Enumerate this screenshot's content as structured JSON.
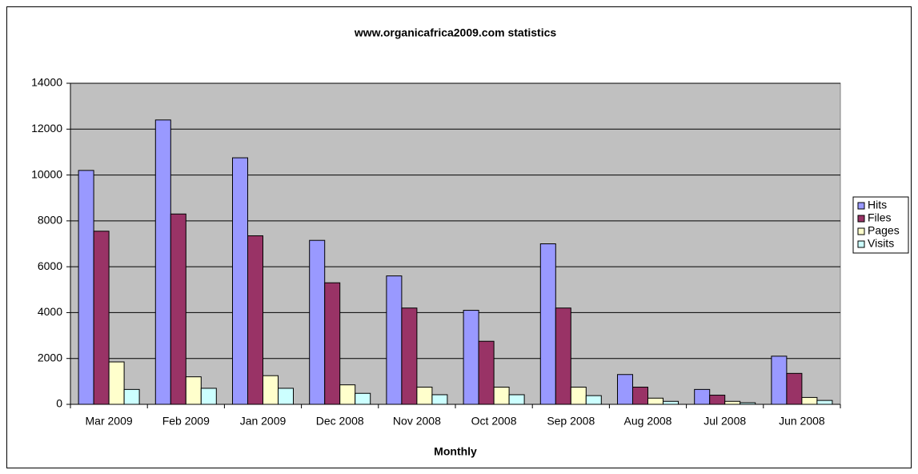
{
  "chart_data": {
    "type": "bar",
    "title": "www.organicafrica2009.com statistics",
    "x_label": "Monthly",
    "categories": [
      "Mar 2009",
      "Feb 2009",
      "Jan 2009",
      "Dec 2008",
      "Nov 2008",
      "Oct 2008",
      "Sep 2008",
      "Aug 2008",
      "Jul 2008",
      "Jun 2008"
    ],
    "series": [
      {
        "name": "Hits",
        "color": "#9999ff",
        "values": [
          10200,
          12400,
          10750,
          7150,
          5600,
          4100,
          7000,
          1300,
          650,
          2100
        ]
      },
      {
        "name": "Files",
        "color": "#993366",
        "values": [
          7550,
          8300,
          7350,
          5300,
          4200,
          2750,
          4200,
          750,
          400,
          1350
        ]
      },
      {
        "name": "Pages",
        "color": "#ffffcc",
        "values": [
          1850,
          1200,
          1250,
          850,
          750,
          750,
          750,
          270,
          130,
          300
        ]
      },
      {
        "name": "Visits",
        "color": "#ccffff",
        "values": [
          650,
          700,
          700,
          480,
          420,
          420,
          380,
          130,
          70,
          170
        ]
      }
    ],
    "ylim": [
      0,
      14000
    ],
    "yticks": [
      0,
      2000,
      4000,
      6000,
      8000,
      10000,
      12000,
      14000
    ],
    "grid": true,
    "legend": "right"
  }
}
